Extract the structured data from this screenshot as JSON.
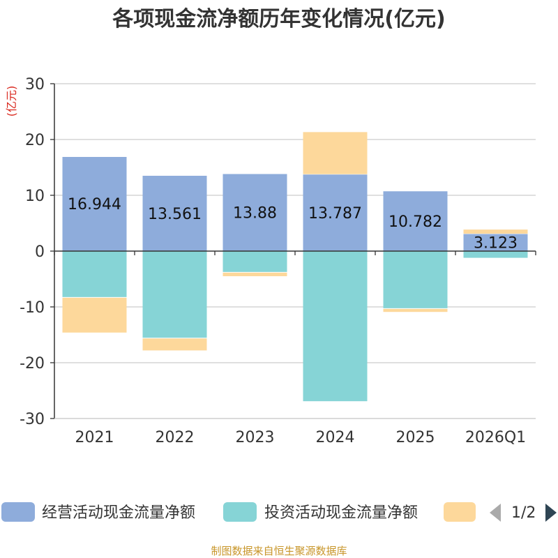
{
  "chart_data": {
    "type": "bar",
    "stacked": true,
    "title": "各项现金流净额历年变化情况(亿元)",
    "unit_label": "(亿元)",
    "categories": [
      "2021",
      "2022",
      "2023",
      "2024",
      "2025",
      "2026Q1"
    ],
    "ylim": [
      -30,
      30
    ],
    "yticks": [
      30,
      20,
      10,
      0,
      -10,
      -20,
      -30
    ],
    "grid": true,
    "series": [
      {
        "name": "经营活动现金流量净额",
        "color": "#8eacdb",
        "values": [
          16.944,
          13.561,
          13.88,
          13.787,
          10.782,
          3.123
        ],
        "labels": [
          "16.944",
          "13.561",
          "13.88",
          "13.787",
          "10.782",
          "3.123"
        ]
      },
      {
        "name": "投资活动现金流量净额",
        "color": "#86d4d6",
        "values": [
          -8.3,
          -15.6,
          -3.8,
          -26.9,
          -10.3,
          -1.2
        ]
      },
      {
        "name": "",
        "color": "#fdd89b",
        "values": [
          -6.3,
          -2.2,
          -0.7,
          7.6,
          -0.6,
          0.8
        ]
      }
    ],
    "legend": {
      "position": "bottom",
      "page": "1/2"
    },
    "source": "制图数据来自恒生聚源数据库"
  }
}
